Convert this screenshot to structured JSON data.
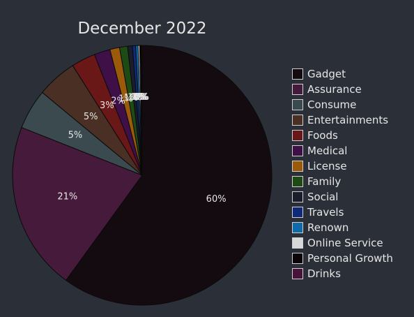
{
  "chart_data": {
    "type": "pie",
    "title": "December 2022",
    "legend_position": "right",
    "series": [
      {
        "name": "Gadget",
        "value": 60.0,
        "color": "#140b11",
        "label": "60%"
      },
      {
        "name": "Assurance",
        "value": 21.0,
        "color": "#451a3a",
        "label": "21%"
      },
      {
        "name": "Consume",
        "value": 5.0,
        "color": "#3a4a4f",
        "label": "5%"
      },
      {
        "name": "Entertainments",
        "value": 5.0,
        "color": "#4a2f25",
        "label": "5%"
      },
      {
        "name": "Foods",
        "value": 3.0,
        "color": "#6a1717",
        "label": "3%"
      },
      {
        "name": "Medical",
        "value": 2.0,
        "color": "#3f0f48",
        "label": "2%"
      },
      {
        "name": "License",
        "value": 1.2,
        "color": "#9a5a0a",
        "label": "1%"
      },
      {
        "name": "Family",
        "value": 1.0,
        "color": "#1e4a14",
        "label": "1%"
      },
      {
        "name": "Social",
        "value": 0.6,
        "color": "#1a1e2c",
        "label": "1%"
      },
      {
        "name": "Travels",
        "value": 0.4,
        "color": "#0e2a78",
        "label": "0%"
      },
      {
        "name": "Renown",
        "value": 0.3,
        "color": "#0e6aa8",
        "label": "0%"
      },
      {
        "name": "Online Service",
        "value": 0.2,
        "color": "#d8d8d8",
        "label": "0%"
      },
      {
        "name": "Personal Growth",
        "value": 0.2,
        "color": "#0c0508",
        "label": "0%"
      },
      {
        "name": "Drinks",
        "value": 0.1,
        "color": "#4a143a",
        "label": "0%"
      }
    ]
  }
}
